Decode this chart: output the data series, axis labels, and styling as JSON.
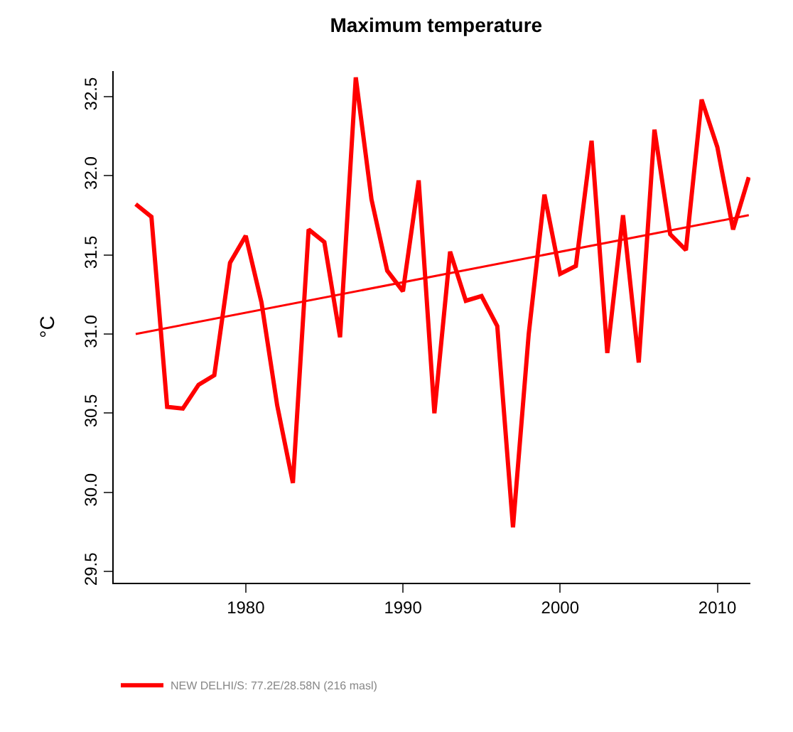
{
  "chart_data": {
    "type": "line",
    "title": "Maximum temperature",
    "ylabel": "°C",
    "x": [
      1973,
      1974,
      1975,
      1976,
      1977,
      1978,
      1979,
      1980,
      1981,
      1982,
      1983,
      1984,
      1985,
      1986,
      1987,
      1988,
      1989,
      1990,
      1991,
      1992,
      1993,
      1994,
      1995,
      1996,
      1997,
      1998,
      1999,
      2000,
      2001,
      2002,
      2003,
      2004,
      2005,
      2006,
      2007,
      2008,
      2009,
      2010,
      2011,
      2012
    ],
    "series": [
      {
        "name": "NEW DELHI/S: 77.2E/28.58N (216 masl)",
        "color": "#ff0000",
        "values": [
          31.82,
          31.74,
          30.54,
          30.53,
          30.68,
          30.74,
          31.45,
          31.62,
          31.2,
          30.55,
          30.06,
          31.66,
          31.58,
          30.98,
          32.62,
          31.85,
          31.4,
          31.27,
          31.97,
          30.5,
          31.52,
          31.21,
          31.24,
          31.05,
          29.78,
          31.0,
          31.88,
          31.38,
          31.43,
          32.22,
          30.88,
          31.75,
          30.82,
          32.29,
          31.63,
          31.53,
          32.48,
          32.18,
          31.66,
          31.99
        ]
      },
      {
        "type": "line",
        "color": "#ff0000",
        "x": [
          1973,
          2012
        ],
        "values": [
          31.0,
          31.75
        ]
      }
    ],
    "xlim": [
      1971.6,
      2012.1
    ],
    "xticks": [
      1980,
      1990,
      2000,
      2010
    ],
    "ylim": [
      29.43,
      32.66
    ],
    "yticks": [
      29.5,
      {
        "value": 30,
        "label": "30.0"
      },
      30.5,
      {
        "value": 31,
        "label": "31.0"
      },
      31.5,
      {
        "value": 32,
        "label": "32.0"
      },
      32.5
    ],
    "legend": "bottom left",
    "marker": "none",
    "line_style": "solid"
  }
}
